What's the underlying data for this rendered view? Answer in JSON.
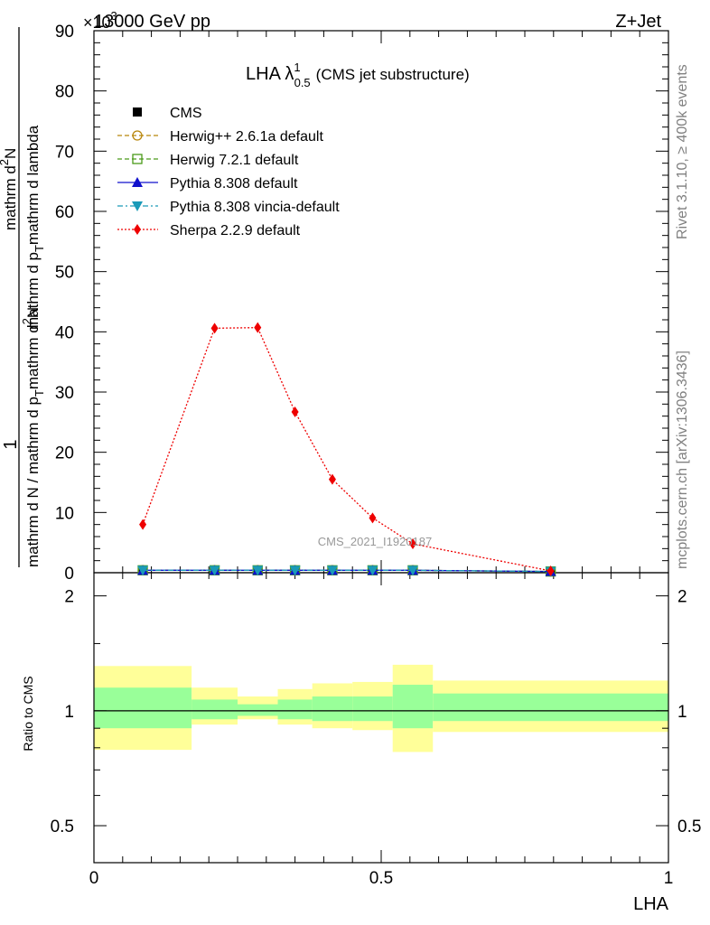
{
  "header": {
    "left_title": "13000 GeV pp",
    "right_title": "Z+Jet",
    "exponent_label": "×10",
    "exponent_power": "3"
  },
  "side_labels": {
    "rivet": "Rivet 3.1.10, ≥ 400k events",
    "mcplots": "mcplots.cern.ch [arXiv:1306.3436]"
  },
  "colors": {
    "cms": "#000000",
    "herwig_pp": "#b8860b",
    "herwig7": "#4a9a1a",
    "pythia": "#1010cc",
    "pythia_vincia": "#1a9ab8",
    "sherpa": "#ee0000",
    "band_inner": "#99ff99",
    "band_outer": "#ffff99"
  },
  "chart_data": {
    "type": "line",
    "title_main": "LHA λ",
    "title_sup": "1",
    "title_sub": "0.5",
    "title_rest": "(CMS jet substructure)",
    "watermark": "CMS_2021_I1920187",
    "xlabel": "LHA",
    "ylabel_numerator": "1",
    "ylabel_denominator": "mathrm d N / mathrm d p",
    "ylabel_denominator_sub": "T",
    "ylabel_dn": "mathrm d",
    "ylabel_dn_sup": "2",
    "ylabel_dn_rest": "N",
    "ylabel_dp": "mathrm d p",
    "ylabel_dp_sub": "T",
    "ylabel_dp_rest": "mathrm d lambda",
    "ratio_ylabel": "Ratio to CMS",
    "xlim": [
      0,
      1
    ],
    "ylim": [
      0,
      90
    ],
    "ratio_ylim": [
      0.4,
      2.3
    ],
    "x_ticks": [
      0,
      0.5,
      1
    ],
    "x_tick_labels": [
      "0",
      "0.5",
      "1"
    ],
    "y_ticks": [
      0,
      10,
      20,
      30,
      40,
      50,
      60,
      70,
      80,
      90
    ],
    "y_tick_labels": [
      "0",
      "10",
      "20",
      "30",
      "40",
      "50",
      "60",
      "70",
      "80",
      "90"
    ],
    "ratio_ticks": [
      0.5,
      1,
      2
    ],
    "ratio_tick_labels": [
      "0.5",
      "1",
      "2"
    ],
    "legend_position": "top-left",
    "series": [
      {
        "name": "CMS",
        "key": "cms",
        "marker": "square",
        "line": "none",
        "x": [
          0.085,
          0.21,
          0.285,
          0.35,
          0.415,
          0.485,
          0.555,
          0.795
        ],
        "y": [
          0.4,
          0.4,
          0.4,
          0.4,
          0.4,
          0.4,
          0.4,
          0.2
        ]
      },
      {
        "name": "Herwig++ 2.6.1a default",
        "key": "herwig_pp",
        "marker": "open-circle",
        "line": "dashed",
        "x": [
          0.085,
          0.21,
          0.285,
          0.35,
          0.415,
          0.485,
          0.555,
          0.795
        ],
        "y": [
          0.4,
          0.4,
          0.4,
          0.4,
          0.4,
          0.4,
          0.4,
          0.2
        ]
      },
      {
        "name": "Herwig 7.2.1 default",
        "key": "herwig7",
        "marker": "open-square",
        "line": "dashed",
        "x": [
          0.085,
          0.21,
          0.285,
          0.35,
          0.415,
          0.485,
          0.555,
          0.795
        ],
        "y": [
          0.4,
          0.4,
          0.4,
          0.4,
          0.4,
          0.4,
          0.4,
          0.2
        ]
      },
      {
        "name": "Pythia 8.308 default",
        "key": "pythia",
        "marker": "triangle-up",
        "line": "solid",
        "x": [
          0.085,
          0.21,
          0.285,
          0.35,
          0.415,
          0.485,
          0.555,
          0.795
        ],
        "y": [
          0.4,
          0.4,
          0.4,
          0.4,
          0.4,
          0.4,
          0.4,
          0.2
        ]
      },
      {
        "name": "Pythia 8.308 vincia-default",
        "key": "pythia_vincia",
        "marker": "triangle-down",
        "line": "dashdot",
        "x": [
          0.085,
          0.21,
          0.285,
          0.35,
          0.415,
          0.485,
          0.555,
          0.795
        ],
        "y": [
          0.4,
          0.4,
          0.4,
          0.4,
          0.4,
          0.4,
          0.4,
          0.2
        ]
      },
      {
        "name": "Sherpa 2.2.9 default",
        "key": "sherpa",
        "marker": "diamond",
        "line": "dotted",
        "x": [
          0.085,
          0.21,
          0.285,
          0.35,
          0.415,
          0.485,
          0.555,
          0.795
        ],
        "y": [
          8.0,
          40.6,
          40.7,
          26.7,
          15.5,
          9.1,
          4.8,
          0.3
        ]
      }
    ],
    "ratio_bands": [
      {
        "x0": 0.0,
        "x1": 0.17,
        "inner": [
          0.9,
          1.15
        ],
        "outer": [
          0.79,
          1.31
        ]
      },
      {
        "x0": 0.17,
        "x1": 0.25,
        "inner": [
          0.95,
          1.07
        ],
        "outer": [
          0.92,
          1.15
        ]
      },
      {
        "x0": 0.25,
        "x1": 0.32,
        "inner": [
          0.97,
          1.04
        ],
        "outer": [
          0.95,
          1.09
        ]
      },
      {
        "x0": 0.32,
        "x1": 0.38,
        "inner": [
          0.95,
          1.07
        ],
        "outer": [
          0.92,
          1.14
        ]
      },
      {
        "x0": 0.38,
        "x1": 0.45,
        "inner": [
          0.94,
          1.09
        ],
        "outer": [
          0.9,
          1.18
        ]
      },
      {
        "x0": 0.45,
        "x1": 0.52,
        "inner": [
          0.94,
          1.09
        ],
        "outer": [
          0.89,
          1.19
        ]
      },
      {
        "x0": 0.52,
        "x1": 0.59,
        "inner": [
          0.9,
          1.17
        ],
        "outer": [
          0.78,
          1.32
        ]
      },
      {
        "x0": 0.59,
        "x1": 1.0,
        "inner": [
          0.94,
          1.11
        ],
        "outer": [
          0.88,
          1.2
        ]
      }
    ]
  }
}
